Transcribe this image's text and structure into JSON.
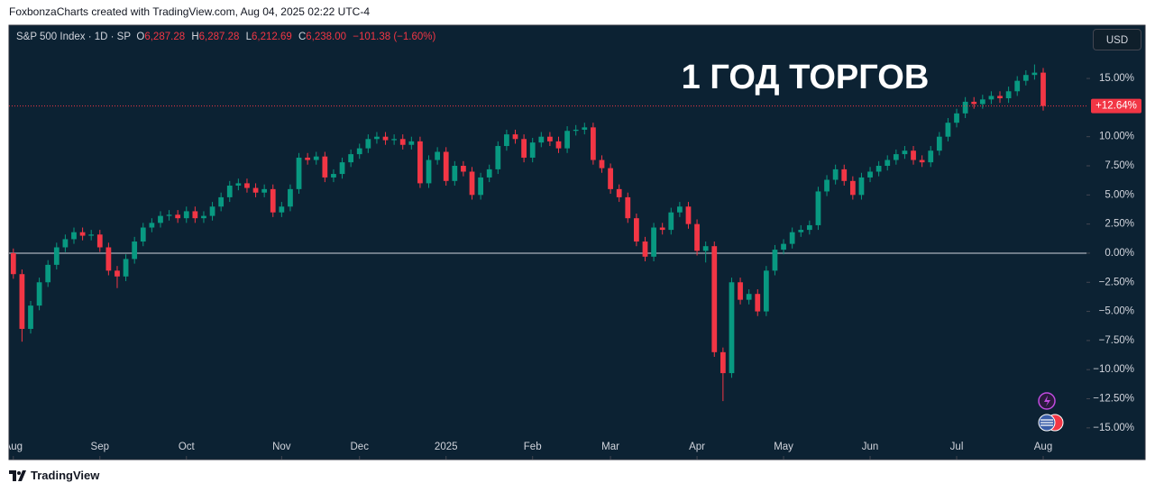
{
  "header": "FoxbonzaCharts created with TradingView.com, Aug 04, 2025 02:22 UTC-4",
  "footer": "TradingView",
  "chart_data": {
    "type": "candlestick",
    "title": "1 ГОД ТОРГОВ",
    "currency": "USD",
    "legend": {
      "symbol": "S&P 500 Index · 1D · SP",
      "o_label": "O",
      "o": "6,287.28",
      "h_label": "H",
      "h": "6,287.28",
      "l_label": "L",
      "l": "6,212.69",
      "c_label": "C",
      "c": "6,238.00",
      "change": "−101.38 (−1.60%)"
    },
    "last_label": "+12.64%",
    "up_color": "#089981",
    "down_color": "#f23645",
    "grid": false,
    "xlim": [
      -0.5,
      124
    ],
    "xticks": [
      {
        "value": 0,
        "label": "Aug"
      },
      {
        "value": 10,
        "label": "Sep"
      },
      {
        "value": 20,
        "label": "Oct"
      },
      {
        "value": 31,
        "label": "Nov"
      },
      {
        "value": 40,
        "label": "Dec"
      },
      {
        "value": 50,
        "label": "2025"
      },
      {
        "value": 60,
        "label": "Feb"
      },
      {
        "value": 69,
        "label": "Mar"
      },
      {
        "value": 79,
        "label": "Apr"
      },
      {
        "value": 89,
        "label": "May"
      },
      {
        "value": 99,
        "label": "Jun"
      },
      {
        "value": 109,
        "label": "Jul"
      },
      {
        "value": 119,
        "label": "Aug"
      }
    ],
    "ylim": [
      -17.72,
      19.57
    ],
    "yticks": [
      {
        "value": 15,
        "label": "15.00%"
      },
      {
        "value": 10,
        "label": "10.00%"
      },
      {
        "value": 7.5,
        "label": "7.50%"
      },
      {
        "value": 5,
        "label": "5.00%"
      },
      {
        "value": 2.5,
        "label": "2.50%"
      },
      {
        "value": 0,
        "label": "0.00%"
      },
      {
        "value": -2.5,
        "label": "−2.50%"
      },
      {
        "value": -5,
        "label": "−5.00%"
      },
      {
        "value": -7.5,
        "label": "−7.50%"
      },
      {
        "value": -10,
        "label": "−10.00%"
      },
      {
        "value": -12.5,
        "label": "−12.50%"
      },
      {
        "value": -15,
        "label": "−15.00%"
      }
    ],
    "open": [
      0,
      -1.8,
      -6.5,
      -4.5,
      -2.5,
      -1.0,
      0.5,
      1.2,
      1.8,
      1.5,
      1.6,
      0.5,
      -1.5,
      -2.0,
      -0.5,
      1.0,
      2.2,
      2.6,
      3.2,
      3.3,
      3.0,
      3.6,
      3.0,
      3.2,
      4.0,
      4.8,
      5.8,
      6.0,
      5.6,
      5.2,
      5.5,
      3.5,
      4.0,
      5.5,
      8.2,
      8.0,
      8.3,
      6.5,
      6.8,
      7.8,
      8.5,
      9.0,
      9.8,
      10.0,
      9.7,
      9.8,
      9.3,
      9.6,
      6.0,
      8.0,
      8.7,
      6.2,
      7.5,
      7.0,
      5.0,
      6.5,
      7.2,
      9.2,
      10.2,
      9.8,
      8.2,
      9.5,
      10.0,
      9.6,
      9.0,
      10.5,
      10.6,
      10.8,
      8.0,
      7.3,
      5.5,
      4.8,
      3.0,
      1.0,
      -0.3,
      2.2,
      2.0,
      3.5,
      4.0,
      2.5,
      0.2,
      0.6,
      -8.5,
      -10.3,
      -2.5,
      -4.0,
      -3.5,
      -5.0,
      -1.5,
      0.3,
      0.8,
      1.8,
      2.0,
      2.4,
      5.3,
      6.3,
      7.2,
      6.2,
      5.0,
      6.5,
      7.0,
      7.5,
      8.0,
      8.5,
      8.8,
      8.0,
      7.8,
      8.8,
      10.0,
      11.2,
      12.0,
      13.0,
      12.8,
      13.2,
      13.5,
      13.3,
      13.9,
      14.8,
      15.3,
      15.5
    ],
    "high": [
      0.4,
      -1.4,
      -4.1,
      -2.1,
      -0.6,
      0.9,
      1.6,
      2.2,
      2.2,
      2.0,
      2.0,
      0.9,
      -1.1,
      -0.1,
      1.4,
      2.6,
      3.0,
      3.6,
      3.7,
      3.7,
      4.0,
      4.0,
      3.6,
      4.4,
      5.2,
      6.2,
      6.4,
      6.4,
      6.0,
      5.9,
      5.9,
      4.4,
      5.9,
      8.6,
      8.6,
      8.7,
      8.7,
      7.2,
      8.2,
      8.9,
      9.4,
      10.2,
      10.4,
      10.4,
      10.2,
      10.2,
      10.0,
      10.0,
      8.4,
      9.1,
      9.1,
      7.9,
      7.9,
      7.4,
      6.9,
      7.6,
      9.6,
      10.6,
      10.6,
      10.2,
      9.9,
      10.4,
      10.4,
      10.0,
      10.9,
      11.0,
      11.2,
      11.2,
      8.4,
      7.7,
      5.9,
      5.2,
      3.4,
      1.4,
      2.6,
      2.6,
      3.9,
      4.4,
      4.4,
      2.9,
      1.0,
      1.0,
      -8.1,
      -2.1,
      -2.1,
      -3.1,
      -3.1,
      -1.1,
      0.7,
      1.2,
      2.2,
      2.4,
      2.8,
      5.7,
      6.7,
      7.6,
      7.6,
      6.6,
      6.9,
      7.4,
      7.9,
      8.4,
      8.9,
      9.2,
      9.2,
      8.4,
      9.2,
      10.4,
      11.6,
      12.4,
      13.4,
      13.4,
      13.6,
      13.9,
      13.9,
      14.3,
      15.2,
      15.7,
      16.2,
      15.9
    ],
    "low": [
      -2.2,
      -7.6,
      -6.9,
      -4.9,
      -2.9,
      -1.4,
      0.1,
      0.8,
      1.1,
      1.1,
      0.1,
      -1.9,
      -3.0,
      -2.4,
      -0.9,
      0.6,
      1.8,
      2.2,
      2.8,
      2.6,
      2.6,
      2.6,
      2.6,
      2.8,
      3.6,
      4.4,
      5.4,
      5.2,
      4.8,
      4.8,
      3.1,
      3.1,
      3.6,
      5.1,
      7.6,
      7.6,
      6.1,
      6.1,
      6.4,
      7.4,
      8.1,
      8.6,
      9.4,
      9.3,
      9.3,
      8.9,
      8.9,
      5.6,
      5.6,
      7.6,
      5.8,
      5.8,
      6.6,
      4.6,
      4.6,
      6.1,
      6.8,
      8.8,
      9.4,
      7.8,
      7.8,
      9.1,
      9.2,
      8.6,
      8.6,
      10.1,
      10.2,
      7.6,
      6.9,
      5.1,
      4.4,
      2.6,
      0.6,
      -0.7,
      -0.7,
      1.6,
      1.6,
      3.1,
      2.1,
      -0.2,
      -0.8,
      -8.9,
      -12.7,
      -10.7,
      -4.4,
      -4.4,
      -5.4,
      -5.4,
      -1.9,
      -0.1,
      0.4,
      1.4,
      1.6,
      2.0,
      4.9,
      5.9,
      5.8,
      4.6,
      4.6,
      6.1,
      6.6,
      7.1,
      7.6,
      8.1,
      7.6,
      7.4,
      7.4,
      8.4,
      9.6,
      10.8,
      11.6,
      12.4,
      12.4,
      12.8,
      12.9,
      12.9,
      13.5,
      14.4,
      14.9,
      12.24
    ],
    "close": [
      -1.8,
      -6.5,
      -4.5,
      -2.5,
      -1.0,
      0.5,
      1.2,
      1.8,
      1.5,
      1.6,
      0.5,
      -1.5,
      -2.0,
      -0.5,
      1.0,
      2.2,
      2.6,
      3.2,
      3.3,
      3.0,
      3.6,
      3.0,
      3.2,
      4.0,
      4.8,
      5.8,
      6.0,
      5.6,
      5.2,
      5.5,
      3.5,
      4.0,
      5.5,
      8.2,
      8.0,
      8.3,
      6.5,
      6.8,
      7.8,
      8.5,
      9.0,
      9.8,
      10.0,
      9.7,
      9.8,
      9.3,
      9.6,
      6.0,
      8.0,
      8.7,
      6.2,
      7.5,
      7.0,
      5.0,
      6.5,
      7.2,
      9.2,
      10.2,
      9.8,
      8.2,
      9.5,
      10.0,
      9.6,
      9.0,
      10.5,
      10.6,
      10.8,
      8.0,
      7.3,
      5.5,
      4.8,
      3.0,
      1.0,
      -0.3,
      2.2,
      2.0,
      3.5,
      4.0,
      2.5,
      0.2,
      0.6,
      -8.5,
      -10.3,
      -2.5,
      -4.0,
      -3.5,
      -5.0,
      -1.5,
      0.3,
      0.8,
      1.8,
      2.0,
      2.4,
      5.3,
      6.3,
      7.2,
      6.2,
      5.0,
      6.5,
      7.0,
      7.5,
      8.0,
      8.5,
      8.8,
      8.0,
      7.8,
      8.8,
      10.0,
      11.2,
      12.0,
      13.0,
      12.8,
      13.2,
      13.5,
      13.3,
      13.9,
      14.8,
      15.3,
      15.5,
      12.64
    ]
  }
}
